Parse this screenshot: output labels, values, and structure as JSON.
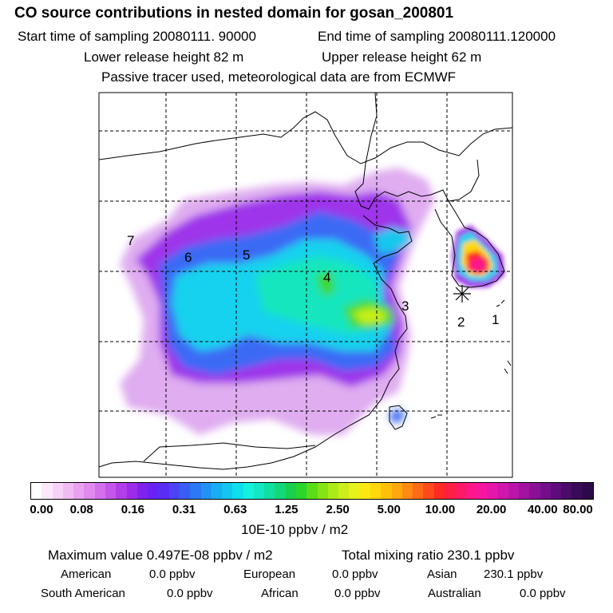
{
  "header": {
    "title": "CO  source contributions in nested domain for gosan_200801",
    "start_sampling": "Start time of sampling 20080111. 90000",
    "end_sampling": "End time of sampling 20080111.120000",
    "lower_release": "Lower release height   82 m",
    "upper_release": "Upper release height   62 m",
    "tracer_note": "Passive tracer used, meteorological data are from ECMWF"
  },
  "map": {
    "region_labels": [
      "7",
      "6",
      "5",
      "4",
      "3",
      "2",
      "1"
    ],
    "receptor_marker": "asterisk"
  },
  "colorbar": {
    "tick_labels": [
      "0.00",
      "0.08",
      "0.16",
      "0.31",
      "0.63",
      "1.25",
      "2.50",
      "5.00",
      "10.00",
      "20.00",
      "40.00",
      "80.00"
    ],
    "units": "10E-10 ppbv / m2",
    "colors": [
      "#ffffff",
      "#fbe8fb",
      "#f6d2f8",
      "#f0bbf4",
      "#e9a2f0",
      "#e18aee",
      "#d470ec",
      "#c456ea",
      "#b23ee8",
      "#9c2bea",
      "#7f22ee",
      "#6a22f2",
      "#5a2df5",
      "#4a44f5",
      "#3a5ef5",
      "#2c78f6",
      "#2293f6",
      "#19adf4",
      "#12c6ef",
      "#0edfec",
      "#16f0e0",
      "#13e8c4",
      "#10dfa0",
      "#13d878",
      "#18d04e",
      "#2ad52c",
      "#58dd18",
      "#86e416",
      "#aceb18",
      "#ccef1c",
      "#e8f11a",
      "#fbe812",
      "#ffd80c",
      "#ffc00a",
      "#ffa70c",
      "#ff8a10",
      "#ff6a16",
      "#ff4a1c",
      "#ff2a22",
      "#ff1f45",
      "#ff1a66",
      "#ff1688",
      "#f815a0",
      "#e616ab",
      "#d116ae",
      "#bb14aa",
      "#a312a2",
      "#8c1097",
      "#740e8a",
      "#5e0c7c",
      "#4a0b6a",
      "#3a0a58",
      "#2c0a48"
    ]
  },
  "stats": {
    "max_value": "Maximum value  0.497E-08 ppbv / m2",
    "total_mixing": "Total mixing ratio      230.1 ppbv",
    "american_label": "American",
    "american_value": "0.0 ppbv",
    "european_label": "European",
    "european_value": "0.0 ppbv",
    "asian_label": "Asian",
    "asian_value": "230.1 ppbv",
    "south_american_label": "South American",
    "south_american_value": "0.0 ppbv",
    "african_label": "African",
    "african_value": "0.0 ppbv",
    "australian_label": "Australian",
    "australian_value": "0.0 ppbv"
  }
}
